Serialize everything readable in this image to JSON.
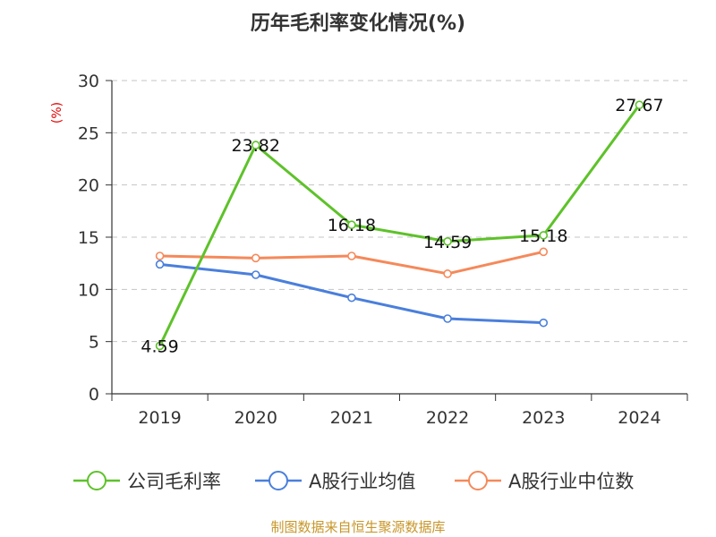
{
  "chart_data": {
    "type": "line",
    "title": "历年毛利率变化情况(%)",
    "ylabel": "(%)",
    "xlabel": "",
    "ylim": [
      0,
      30
    ],
    "yticks": [
      0,
      5,
      10,
      15,
      20,
      25,
      30
    ],
    "categories": [
      "2019",
      "2020",
      "2021",
      "2022",
      "2023",
      "2024"
    ],
    "grid": true,
    "legend_position": "bottom",
    "series": [
      {
        "name": "公司毛利率",
        "color": "#5ec22a",
        "values": [
          4.59,
          23.82,
          16.18,
          14.59,
          15.18,
          27.67
        ],
        "labels": [
          "4.59",
          "23.82",
          "16.18",
          "14.59",
          "15.18",
          "27.67"
        ]
      },
      {
        "name": "A股行业均值",
        "color": "#4a7fdc",
        "values": [
          12.4,
          11.4,
          9.2,
          7.2,
          6.8,
          null
        ]
      },
      {
        "name": "A股行业中位数",
        "color": "#f5895a",
        "values": [
          13.2,
          13.0,
          13.2,
          11.5,
          13.6,
          null
        ]
      }
    ],
    "source": "制图数据来自恒生聚源数据库"
  }
}
